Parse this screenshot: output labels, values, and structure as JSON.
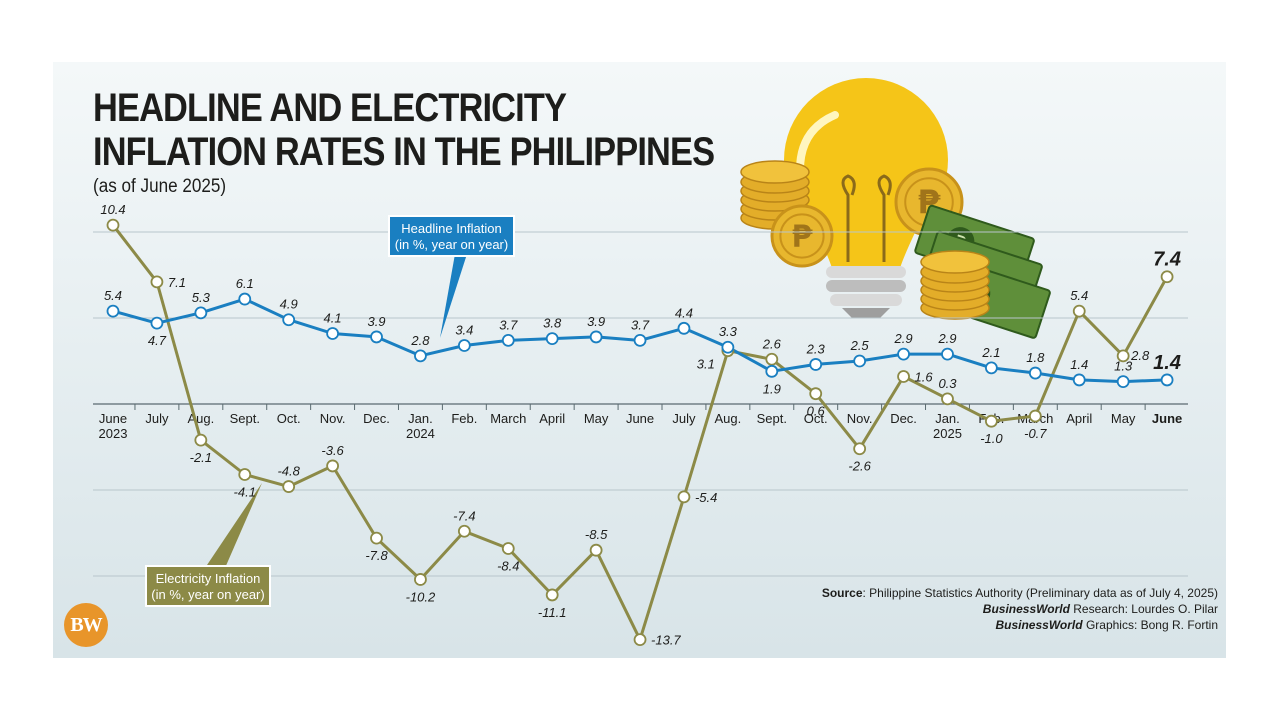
{
  "title_line1": "HEADLINE AND ELECTRICITY",
  "title_line2": "INFLATION RATES IN THE PHILIPPINES",
  "subtitle": "(as of June 2025)",
  "chart_data": {
    "type": "line",
    "x": [
      "June\n2023",
      "July",
      "Aug.",
      "Sept.",
      "Oct.",
      "Nov.",
      "Dec.",
      "Jan.\n2024",
      "Feb.",
      "March",
      "April",
      "May",
      "June",
      "July",
      "Aug.",
      "Sept.",
      "Oct.",
      "Nov.",
      "Dec.",
      "Jan.\n2025",
      "Feb.",
      "March",
      "April",
      "May",
      "June"
    ],
    "series": [
      {
        "name_line1": "Headline Inflation",
        "name_line2": "(in %, year on year)",
        "color": "#1a7fc1",
        "values": [
          5.4,
          4.7,
          5.3,
          6.1,
          4.9,
          4.1,
          3.9,
          2.8,
          3.4,
          3.7,
          3.8,
          3.9,
          3.7,
          4.4,
          3.3,
          1.9,
          2.3,
          2.5,
          2.9,
          2.9,
          2.1,
          1.8,
          1.4,
          1.3,
          1.4
        ],
        "labels": [
          "5.4",
          "4.7",
          "5.3",
          "6.1",
          "4.9",
          "4.1",
          "3.9",
          "2.8",
          "3.4",
          "3.7",
          "3.8",
          "3.9",
          "3.7",
          "4.4",
          "3.3",
          "1.9",
          "2.3",
          "2.5",
          "2.9",
          "2.9",
          "2.1",
          "1.8",
          "1.4",
          "1.3",
          "1.4"
        ]
      },
      {
        "name_line1": "Electricity Inflation",
        "name_line2": "(in %, year on year)",
        "color": "#8c8a47",
        "values": [
          10.4,
          7.1,
          -2.1,
          -4.1,
          -4.8,
          -3.6,
          -7.8,
          -10.2,
          -7.4,
          -8.4,
          -11.1,
          -8.5,
          -13.7,
          -5.4,
          3.1,
          2.6,
          0.6,
          -2.6,
          1.6,
          0.3,
          -1.0,
          -0.7,
          5.4,
          2.8,
          7.4
        ],
        "labels": [
          "10.4",
          "7.1",
          "-2.1",
          "-4.1",
          "-4.8",
          "-3.6",
          "-7.8",
          "-10.2",
          "-7.4",
          "-8.4",
          "-11.1",
          "-8.5",
          "-13.7",
          "-5.4",
          "3.1",
          "2.6",
          "0.6",
          "-2.6",
          "1.6",
          "0.3",
          "-1.0",
          "-0.7",
          "5.4",
          "2.8",
          "7.4"
        ]
      }
    ],
    "ylim": [
      -14,
      11
    ],
    "grid": true
  },
  "credits": {
    "source_label": "Source",
    "source_text": ": Philippine Statistics Authority (Preliminary data as of July 4, 2025)",
    "research_label": "BusinessWorld",
    "research_text": " Research: Lourdes O. Pilar",
    "graphics_label": "BusinessWorld",
    "graphics_text": " Graphics: Bong R. Fortin"
  },
  "logo_text": "BW",
  "colors": {
    "headline": "#1a7fc1",
    "electricity": "#8c8a47",
    "grid": "#b8c6cc"
  },
  "icons": [
    "light-bulb-icon",
    "peso-coin-icon",
    "peso-banknote-icon"
  ]
}
